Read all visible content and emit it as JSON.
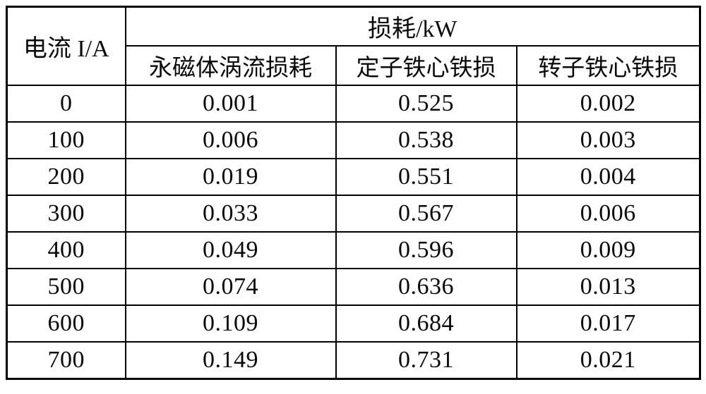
{
  "table": {
    "corner_header": "电流 I/A",
    "group_header": "损耗/kW",
    "sub_headers": [
      "永磁体涡流损耗",
      "定子铁心铁损",
      "转子铁心铁损"
    ],
    "rows": [
      {
        "current": "0",
        "values": [
          "0.001",
          "0.525",
          "0.002"
        ]
      },
      {
        "current": "100",
        "values": [
          "0.006",
          "0.538",
          "0.003"
        ]
      },
      {
        "current": "200",
        "values": [
          "0.019",
          "0.551",
          "0.004"
        ]
      },
      {
        "current": "300",
        "values": [
          "0.033",
          "0.567",
          "0.006"
        ]
      },
      {
        "current": "400",
        "values": [
          "0.049",
          "0.596",
          "0.009"
        ]
      },
      {
        "current": "500",
        "values": [
          "0.074",
          "0.636",
          "0.013"
        ]
      },
      {
        "current": "600",
        "values": [
          "0.109",
          "0.684",
          "0.017"
        ]
      },
      {
        "current": "700",
        "values": [
          "0.149",
          "0.731",
          "0.021"
        ]
      }
    ],
    "border_color": "#000000",
    "text_color": "#0a0a0a",
    "background_color": "#ffffff"
  },
  "chart_data": {
    "type": "table",
    "title": "损耗/kW",
    "xlabel": "电流 I/A",
    "categories": [
      0,
      100,
      200,
      300,
      400,
      500,
      600,
      700
    ],
    "series": [
      {
        "name": "永磁体涡流损耗",
        "values": [
          0.001,
          0.006,
          0.019,
          0.033,
          0.049,
          0.074,
          0.109,
          0.149
        ]
      },
      {
        "name": "定子铁心铁损",
        "values": [
          0.525,
          0.538,
          0.551,
          0.567,
          0.596,
          0.636,
          0.684,
          0.731
        ]
      },
      {
        "name": "转子铁心铁损",
        "values": [
          0.002,
          0.003,
          0.004,
          0.006,
          0.009,
          0.013,
          0.017,
          0.021
        ]
      }
    ]
  }
}
